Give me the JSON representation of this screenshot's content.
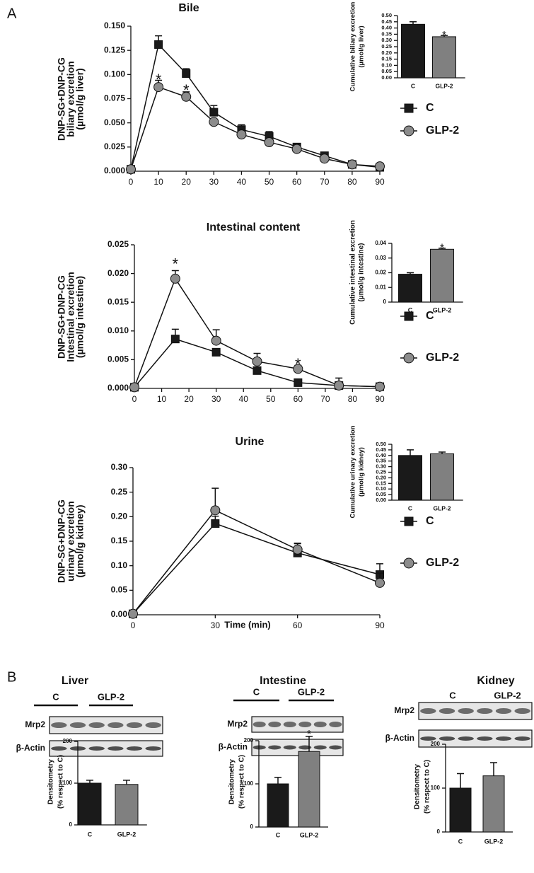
{
  "panels": [
    "A",
    "B"
  ],
  "chart_data": [
    {
      "type": "line",
      "title": "Bile",
      "ylabel": [
        "DNP-SG+DNP-CG",
        "biliary excretion",
        "(µmol/g liver)"
      ],
      "x": [
        0,
        10,
        20,
        30,
        40,
        50,
        60,
        70,
        80,
        90
      ],
      "series": [
        {
          "name": "C",
          "color": "#1a1a1a",
          "marker": "square",
          "values": [
            0.002,
            0.131,
            0.101,
            0.061,
            0.043,
            0.036,
            0.025,
            0.016,
            0.007,
            0.004
          ],
          "errors": [
            null,
            0.009,
            0.005,
            0.007,
            0.005,
            0.005,
            0.003,
            0.002,
            0.001,
            0.001
          ]
        },
        {
          "name": "GLP-2",
          "color": "#8c8c8c",
          "marker": "circle",
          "values": [
            0.002,
            0.087,
            0.077,
            0.051,
            0.038,
            0.03,
            0.023,
            0.013,
            0.007,
            0.005
          ],
          "errors": [
            null,
            0.007,
            0.005,
            0.003,
            0.003,
            0.002,
            0.002,
            0.002,
            0.001,
            0.001
          ]
        }
      ],
      "xlim": [
        0,
        90
      ],
      "xticks": [
        0,
        10,
        20,
        30,
        40,
        50,
        60,
        70,
        80,
        90
      ],
      "ylim": [
        0,
        0.15
      ],
      "yticks": [
        {
          "value": 0,
          "label": "0.000"
        },
        {
          "value": 0.025,
          "label": "0.025"
        },
        {
          "value": 0.05,
          "label": "0.050"
        },
        {
          "value": 0.075,
          "label": "0.075"
        },
        {
          "value": 0.1,
          "label": "0.100"
        },
        {
          "value": 0.125,
          "label": "0.125"
        },
        {
          "value": 0.15,
          "label": "0.150"
        }
      ],
      "annotations": [
        {
          "x": 10,
          "y": 0.098,
          "text": "*"
        },
        {
          "x": 20,
          "y": 0.087,
          "text": "*"
        }
      ]
    },
    {
      "type": "bar",
      "ylabel": [
        "Cumulative biliary excretion",
        "(µmol/g liver)"
      ],
      "categories": [
        "C",
        "GLP-2"
      ],
      "values": [
        0.43,
        0.33
      ],
      "errors": [
        0.02,
        0.01
      ],
      "colors": [
        "#1a1a1a",
        "#808080"
      ],
      "ylim": [
        0,
        0.5
      ],
      "yticks": [
        {
          "value": 0,
          "label": "0.00"
        },
        0.05,
        {
          "value": 0.1,
          "label": "0.10"
        },
        0.15,
        {
          "value": 0.2,
          "label": "0.20"
        },
        0.25,
        {
          "value": 0.3,
          "label": "0.30"
        },
        0.35,
        {
          "value": 0.4,
          "label": "0.40"
        },
        0.45,
        {
          "value": 0.5,
          "label": "0.50"
        }
      ],
      "annotations": [
        {
          "x": "GLP-2",
          "y": 0.365,
          "text": "*"
        }
      ]
    },
    {
      "type": "line",
      "title": "Intestinal content",
      "ylabel": [
        "DNP-SG+DNP-CG",
        "Intestinal excretion",
        "(µmol/g intestine)"
      ],
      "x": [
        0,
        15,
        30,
        45,
        60,
        75,
        90
      ],
      "series": [
        {
          "name": "C",
          "color": "#1a1a1a",
          "marker": "square",
          "values": [
            0.0002,
            0.0086,
            0.0063,
            0.0031,
            0.001,
            0.0005,
            0.0003
          ],
          "errors": [
            null,
            0.0017,
            0.0006,
            0.0004,
            0.0006,
            0.0013,
            0.0002
          ]
        },
        {
          "name": "GLP-2",
          "color": "#8c8c8c",
          "marker": "circle",
          "values": [
            0.0002,
            0.0191,
            0.0083,
            0.0047,
            0.0034,
            0.0005,
            0.0003
          ],
          "errors": [
            null,
            0.0014,
            0.0019,
            0.0014,
            0.0006,
            0.0004,
            0.0002
          ]
        }
      ],
      "xlim": [
        0,
        90
      ],
      "xticks": [
        0,
        10,
        20,
        30,
        40,
        50,
        60,
        70,
        80,
        90
      ],
      "ylim": [
        0,
        0.025
      ],
      "yticks": [
        {
          "value": 0,
          "label": "0.000"
        },
        {
          "value": 0.005,
          "label": "0.005"
        },
        {
          "value": 0.01,
          "label": "0.010"
        },
        {
          "value": 0.015,
          "label": "0.015"
        },
        {
          "value": 0.02,
          "label": "0.020"
        },
        {
          "value": 0.025,
          "label": "0.025"
        }
      ],
      "annotations": [
        {
          "x": 15,
          "y": 0.0222,
          "text": "*"
        },
        {
          "x": 60,
          "y": 0.0048,
          "text": "*"
        }
      ]
    },
    {
      "type": "bar",
      "ylabel": [
        "Cumulative intestinal excretion",
        "(µmol/g intestine)"
      ],
      "categories": [
        "C",
        "GLP-2"
      ],
      "values": [
        0.019,
        0.036
      ],
      "errors": [
        0.001,
        0.0007
      ],
      "colors": [
        "#1a1a1a",
        "#808080"
      ],
      "ylim": [
        0,
        0.04
      ],
      "yticks": [
        0,
        0.01,
        0.02,
        0.03,
        0.04
      ],
      "annotations": [
        {
          "x": "GLP-2",
          "y": 0.039,
          "text": "*"
        }
      ]
    },
    {
      "type": "line",
      "title": "Urine",
      "xlabel": "Time (min)",
      "ylabel": [
        "DNP-SG+DNP-CG",
        "urinary excretion",
        "(µmol/g kidney)"
      ],
      "x": [
        0,
        30,
        60,
        90
      ],
      "series": [
        {
          "name": "C",
          "color": "#1a1a1a",
          "marker": "square",
          "values": [
            0.002,
            0.186,
            0.126,
            0.082
          ],
          "errors": [
            null,
            0.015,
            0.02,
            0.022
          ]
        },
        {
          "name": "GLP-2",
          "color": "#8c8c8c",
          "marker": "circle",
          "values": [
            0.002,
            0.213,
            0.133,
            0.065
          ],
          "errors": [
            null,
            0.045,
            0.012,
            0.02
          ]
        }
      ],
      "xlim": [
        0,
        90
      ],
      "xticks": [
        0,
        30,
        60,
        90
      ],
      "ylim": [
        0,
        0.3
      ],
      "yticks": [
        {
          "value": 0,
          "label": "0.00"
        },
        0.05,
        {
          "value": 0.1,
          "label": "0.10"
        },
        0.15,
        {
          "value": 0.2,
          "label": "0.20"
        },
        0.25,
        {
          "value": 0.3,
          "label": "0.30"
        }
      ]
    },
    {
      "type": "bar",
      "ylabel": [
        "Cumulative urinary excretion",
        "(µmol/g kidney)"
      ],
      "categories": [
        "C",
        "GLP-2"
      ],
      "values": [
        0.4,
        0.415
      ],
      "errors": [
        0.05,
        0.015
      ],
      "colors": [
        "#1a1a1a",
        "#808080"
      ],
      "ylim": [
        0,
        0.5
      ],
      "yticks": [
        {
          "value": 0,
          "label": "0.00"
        },
        0.05,
        {
          "value": 0.1,
          "label": "0.10"
        },
        0.15,
        {
          "value": 0.2,
          "label": "0.20"
        },
        0.25,
        {
          "value": 0.3,
          "label": "0.30"
        },
        0.35,
        {
          "value": 0.4,
          "label": "0.40"
        },
        0.45,
        {
          "value": 0.5,
          "label": "0.50"
        }
      ]
    },
    {
      "type": "bar",
      "title": "Liver",
      "groups": [
        "C",
        "GLP-2"
      ],
      "blot_rows": [
        "Mrp2",
        "β-Actin"
      ],
      "ylabel": [
        "Densitometry",
        "(% respect to C)"
      ],
      "categories": [
        "C",
        "GLP-2"
      ],
      "values": [
        100,
        97
      ],
      "errors": [
        7,
        10
      ],
      "colors": [
        "#1a1a1a",
        "#808080"
      ],
      "ylim": [
        0,
        200
      ],
      "yticks": [
        0,
        100,
        200
      ]
    },
    {
      "type": "bar",
      "title": "Intestine",
      "groups": [
        "C",
        "GLP-2"
      ],
      "blot_rows": [
        "Mrp2",
        "β-Actin"
      ],
      "ylabel": [
        "Densitometry",
        "(% respect to C)"
      ],
      "categories": [
        "C",
        "GLP-2"
      ],
      "values": [
        100,
        175
      ],
      "errors": [
        15,
        35
      ],
      "colors": [
        "#1a1a1a",
        "#808080"
      ],
      "ylim": [
        0,
        200
      ],
      "yticks": [
        0,
        100,
        200
      ],
      "annotations": [
        {
          "x": "GLP-2",
          "y": 222,
          "text": "*"
        }
      ]
    },
    {
      "type": "bar",
      "title": "Kidney",
      "groups": [
        "C",
        "GLP-2"
      ],
      "blot_rows": [
        "Mrp2",
        "β-Actin"
      ],
      "ylabel": [
        "Densitometry",
        "(% respect to C)"
      ],
      "categories": [
        "C",
        "GLP-2"
      ],
      "values": [
        100,
        128
      ],
      "errors": [
        33,
        30
      ],
      "colors": [
        "#1a1a1a",
        "#808080"
      ],
      "ylim": [
        0,
        200
      ],
      "yticks": [
        0,
        100,
        200
      ]
    }
  ]
}
